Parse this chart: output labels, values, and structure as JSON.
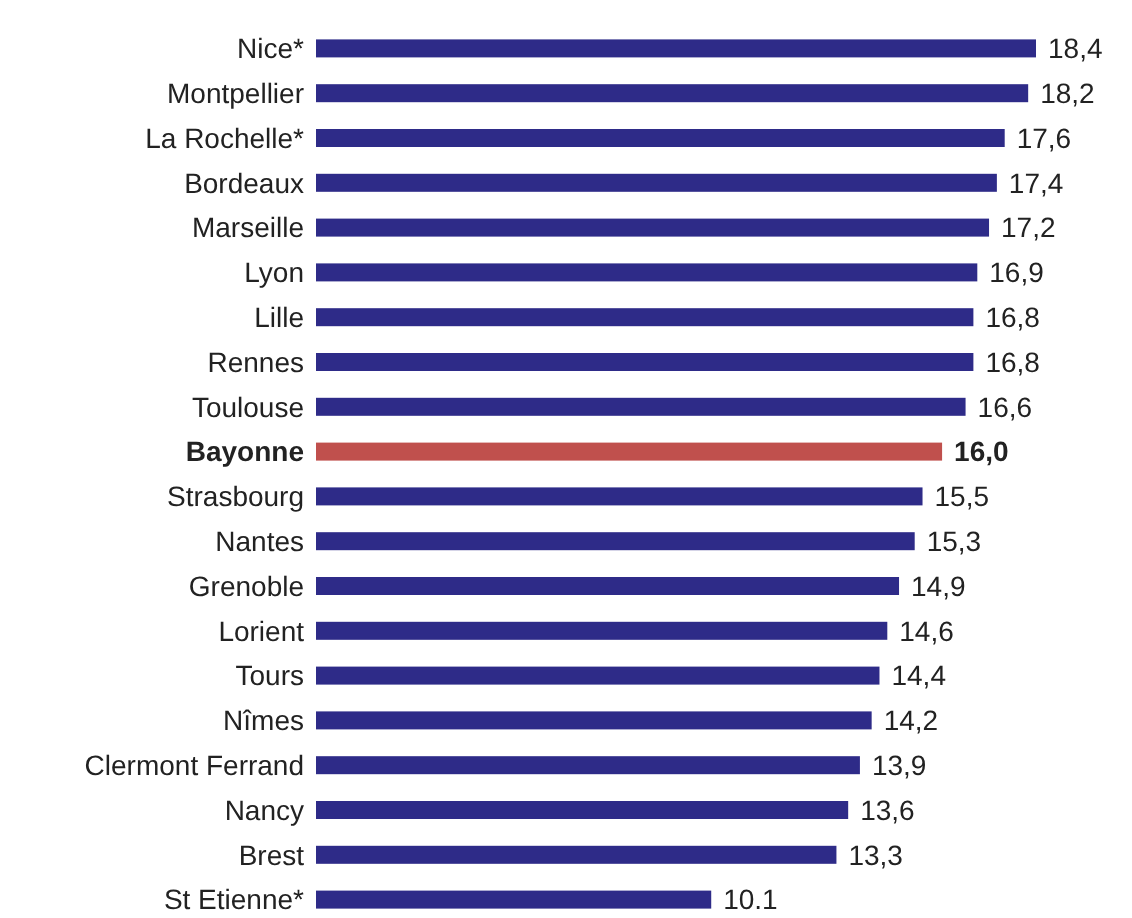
{
  "chart_data": {
    "type": "bar",
    "orientation": "horizontal",
    "categories": [
      "Nice*",
      "Montpellier",
      "La Rochelle*",
      "Bordeaux",
      "Marseille",
      "Lyon",
      "Lille",
      "Rennes",
      "Toulouse",
      "Bayonne",
      "Strasbourg",
      "Nantes",
      "Grenoble",
      "Lorient",
      "Tours",
      "Nîmes",
      "Clermont Ferrand",
      "Nancy",
      "Brest",
      "St Etienne*"
    ],
    "values": [
      18.4,
      18.2,
      17.6,
      17.4,
      17.2,
      16.9,
      16.8,
      16.8,
      16.6,
      16.0,
      15.5,
      15.3,
      14.9,
      14.6,
      14.4,
      14.2,
      13.9,
      13.6,
      13.3,
      10.1
    ],
    "colors": [
      "#2e2b88",
      "#2e2b88",
      "#2e2b88",
      "#2e2b88",
      "#2e2b88",
      "#2e2b88",
      "#2e2b88",
      "#2e2b88",
      "#2e2b88",
      "#c0504d",
      "#2e2b88",
      "#2e2b88",
      "#2e2b88",
      "#2e2b88",
      "#2e2b88",
      "#2e2b88",
      "#2e2b88",
      "#2e2b88",
      "#2e2b88",
      "#2e2b88"
    ],
    "value_labels": [
      "18,4",
      "18,2",
      "17,6",
      "17,4",
      "17,2",
      "16,9",
      "16,8",
      "16,8",
      "16,6",
      "16,0",
      "15,5",
      "15,3",
      "14,9",
      "14,6",
      "14,4",
      "14,2",
      "13,9",
      "13,6",
      "13,3",
      "10.1"
    ]
  }
}
